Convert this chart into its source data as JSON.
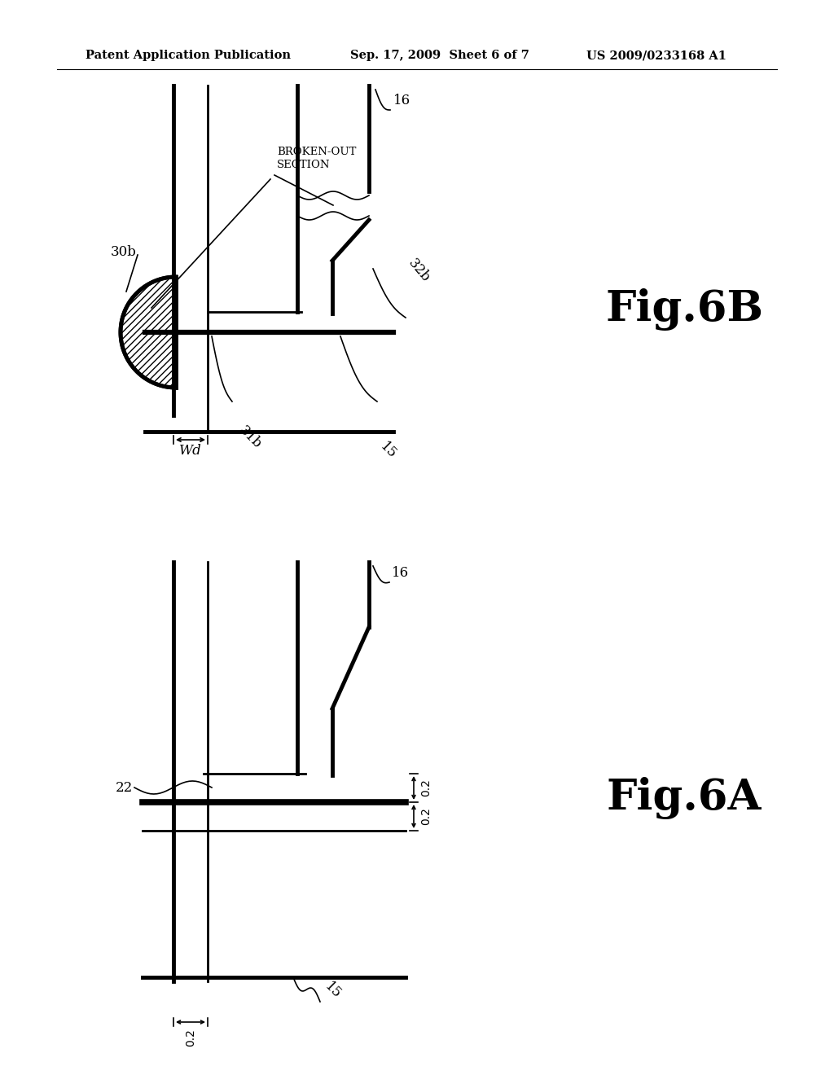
{
  "bg_color": "#ffffff",
  "line_color": "#000000",
  "header_left": "Patent Application Publication",
  "header_mid": "Sep. 17, 2009  Sheet 6 of 7",
  "header_right": "US 2009/0233168 A1",
  "fig6B_label": "Fig.6B",
  "fig6A_label": "Fig.6A"
}
